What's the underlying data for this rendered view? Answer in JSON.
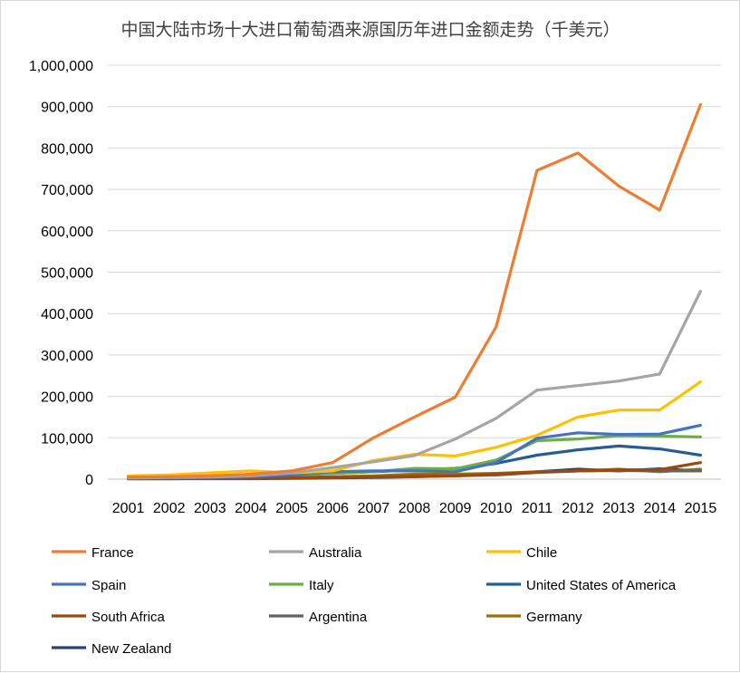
{
  "chart_data": {
    "type": "line",
    "title": "中国大陆市场十大进口葡萄酒来源国历年进口金额走势（千美元）",
    "xlabel": "",
    "ylabel": "",
    "x": [
      "2001",
      "2002",
      "2003",
      "2004",
      "2005",
      "2006",
      "2007",
      "2008",
      "2009",
      "2010",
      "2011",
      "2012",
      "2013",
      "2014",
      "2015"
    ],
    "ylim": [
      0,
      1000000
    ],
    "yticks": [
      0,
      100000,
      200000,
      300000,
      400000,
      500000,
      600000,
      700000,
      800000,
      900000,
      1000000
    ],
    "ytick_labels": [
      "0",
      "100,000",
      "200,000",
      "300,000",
      "400,000",
      "500,000",
      "600,000",
      "700,000",
      "800,000",
      "900,000",
      "1,000,000"
    ],
    "grid": true,
    "legend_position": "bottom",
    "series": [
      {
        "name": "France",
        "color": "#ED7D31",
        "values": [
          5000,
          6000,
          8000,
          12000,
          20000,
          40000,
          100000,
          150000,
          198000,
          368000,
          746000,
          788000,
          708000,
          650000,
          905000
        ]
      },
      {
        "name": "Australia",
        "color": "#A5A5A5",
        "values": [
          3000,
          4000,
          5000,
          8000,
          15000,
          28000,
          42000,
          57000,
          97000,
          147000,
          215000,
          226000,
          237000,
          254000,
          454000
        ]
      },
      {
        "name": "Chile",
        "color": "#FFC000",
        "values": [
          8000,
          10000,
          15000,
          20000,
          15000,
          20000,
          45000,
          60000,
          56000,
          77000,
          106000,
          150000,
          167000,
          167000,
          235000
        ]
      },
      {
        "name": "Spain",
        "color": "#4472C4",
        "values": [
          2000,
          3000,
          4000,
          5000,
          10000,
          18000,
          20000,
          20000,
          18000,
          40000,
          99000,
          112000,
          108000,
          109000,
          130000
        ]
      },
      {
        "name": "Italy",
        "color": "#70AD47",
        "values": [
          3000,
          4000,
          5000,
          7000,
          10000,
          14000,
          18000,
          26000,
          25000,
          46000,
          93000,
          97000,
          105000,
          104000,
          102000
        ]
      },
      {
        "name": "United States of America",
        "color": "#255E91",
        "values": [
          4000,
          5000,
          6000,
          7000,
          10000,
          14000,
          18000,
          22000,
          26000,
          38000,
          58000,
          71000,
          80000,
          73000,
          58000
        ]
      },
      {
        "name": "South Africa",
        "color": "#9E480E",
        "values": [
          1000,
          1000,
          2000,
          2000,
          3000,
          4000,
          5000,
          7000,
          8000,
          12000,
          17000,
          20000,
          22000,
          23000,
          40000
        ]
      },
      {
        "name": "Argentina",
        "color": "#636363",
        "values": [
          1000,
          1000,
          2000,
          2000,
          3000,
          4000,
          5000,
          6000,
          8000,
          10000,
          16000,
          20000,
          21000,
          20000,
          20000
        ]
      },
      {
        "name": "Germany",
        "color": "#997300",
        "values": [
          2000,
          2000,
          3000,
          3000,
          4000,
          6000,
          8000,
          12000,
          12000,
          14000,
          18000,
          20000,
          24000,
          18000,
          24000
        ]
      },
      {
        "name": "New Zealand",
        "color": "#264478",
        "values": [
          1000,
          1000,
          1000,
          1000,
          2000,
          3000,
          4000,
          6000,
          8000,
          12000,
          18000,
          24000,
          20000,
          25000,
          20000
        ]
      }
    ]
  }
}
